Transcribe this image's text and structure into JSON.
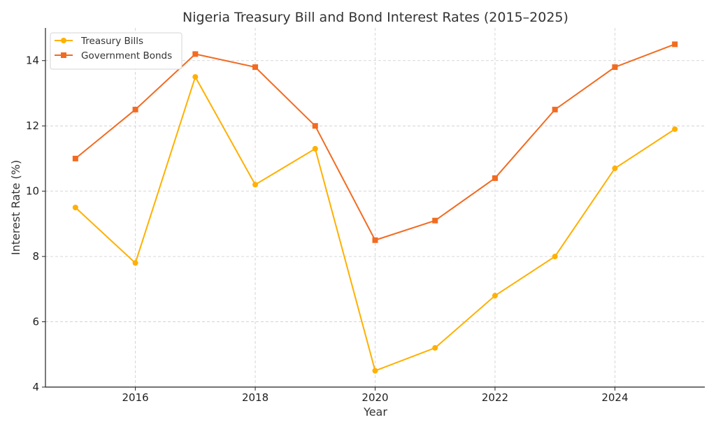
{
  "chart_data": {
    "type": "line",
    "title": "Nigeria Treasury Bill and Bond Interest Rates (2015–2025)",
    "xlabel": "Year",
    "ylabel": "Interest Rate (%)",
    "x": [
      2015,
      2016,
      2017,
      2018,
      2019,
      2020,
      2021,
      2022,
      2023,
      2024,
      2025
    ],
    "xlim": [
      2014.5,
      2025.5
    ],
    "ylim": [
      4,
      15
    ],
    "xticks": [
      2016,
      2018,
      2020,
      2022,
      2024
    ],
    "yticks": [
      4,
      6,
      8,
      10,
      12,
      14
    ],
    "grid": true,
    "legend_position": "top-left",
    "series": [
      {
        "name": "Treasury Bills",
        "color": "#FFB000",
        "marker": "circle",
        "values": [
          9.5,
          7.8,
          13.5,
          10.2,
          11.3,
          4.5,
          5.2,
          6.8,
          8.0,
          10.7,
          11.9
        ]
      },
      {
        "name": "Government Bonds",
        "color": "#F26B21",
        "marker": "square",
        "values": [
          11.0,
          12.5,
          14.2,
          13.8,
          12.0,
          8.5,
          9.1,
          10.4,
          12.5,
          13.8,
          14.5
        ]
      }
    ]
  }
}
